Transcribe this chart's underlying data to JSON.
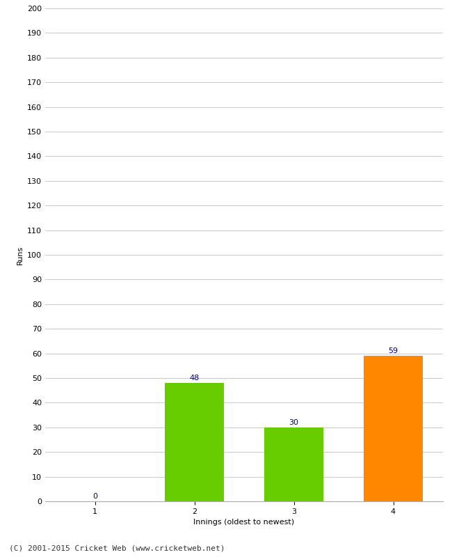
{
  "categories": [
    "1",
    "2",
    "3",
    "4"
  ],
  "values": [
    0,
    48,
    30,
    59
  ],
  "bar_colors": [
    "#66cc00",
    "#66cc00",
    "#66cc00",
    "#ff8800"
  ],
  "xlabel": "Innings (oldest to newest)",
  "ylabel": "Runs",
  "ylim": [
    0,
    200
  ],
  "yticks": [
    0,
    10,
    20,
    30,
    40,
    50,
    60,
    70,
    80,
    90,
    100,
    110,
    120,
    130,
    140,
    150,
    160,
    170,
    180,
    190,
    200
  ],
  "label_color": "#000080",
  "label_fontsize": 8,
  "axis_label_fontsize": 8,
  "tick_fontsize": 8,
  "background_color": "#ffffff",
  "footer_text": "(C) 2001-2015 Cricket Web (www.cricketweb.net)",
  "footer_fontsize": 8,
  "grid_color": "#cccccc",
  "bar_width": 0.6
}
